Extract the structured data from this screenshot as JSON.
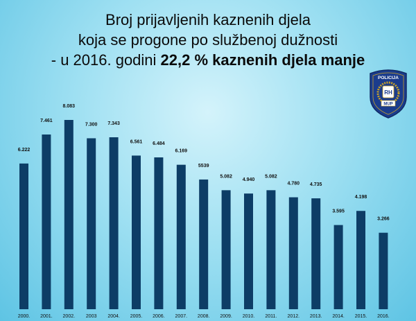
{
  "header": {
    "line1": "Broj prijavljenih kaznenih djela",
    "line2": "koja se progone po službenoj dužnosti",
    "line3_prefix": "- u 2016. godini",
    "line3_emphasis": "22,2 % kaznenih djela manje"
  },
  "badge": {
    "top_text": "POLICIJA",
    "shield_text": "RH",
    "bottom_text": "MUP",
    "colors": {
      "frame": "#1b3c8c",
      "gold": "#c9a227",
      "shield": "#ffffff"
    }
  },
  "colors": {
    "bar": "#0d3d66",
    "highlight_label": "#ff0000"
  },
  "chart_data": {
    "type": "bar",
    "categories": [
      "2000.",
      "2001.",
      "2002.",
      "2003",
      "2004.",
      "2005.",
      "2006.",
      "2007.",
      "2008.",
      "2009.",
      "2010.",
      "2011.",
      "2012.",
      "2013.",
      "2014.",
      "2015.",
      "2016."
    ],
    "values": [
      6222,
      7461,
      8083,
      7300,
      7343,
      6561,
      6484,
      6169,
      5539,
      5082,
      4940,
      5082,
      4780,
      4735,
      3595,
      4198,
      3266
    ],
    "data_labels": [
      "6.222",
      "7.461",
      "8.083",
      "7.300",
      "7.343",
      "6.561",
      "6.484",
      "6.169",
      "5539",
      "5.082",
      "4.940",
      "5.082",
      "4.780",
      "4.735",
      "3.595",
      "4.198",
      "3.266"
    ],
    "highlight_index": 16,
    "ylim": [
      0,
      8083
    ],
    "grid": false,
    "legend": "none"
  }
}
